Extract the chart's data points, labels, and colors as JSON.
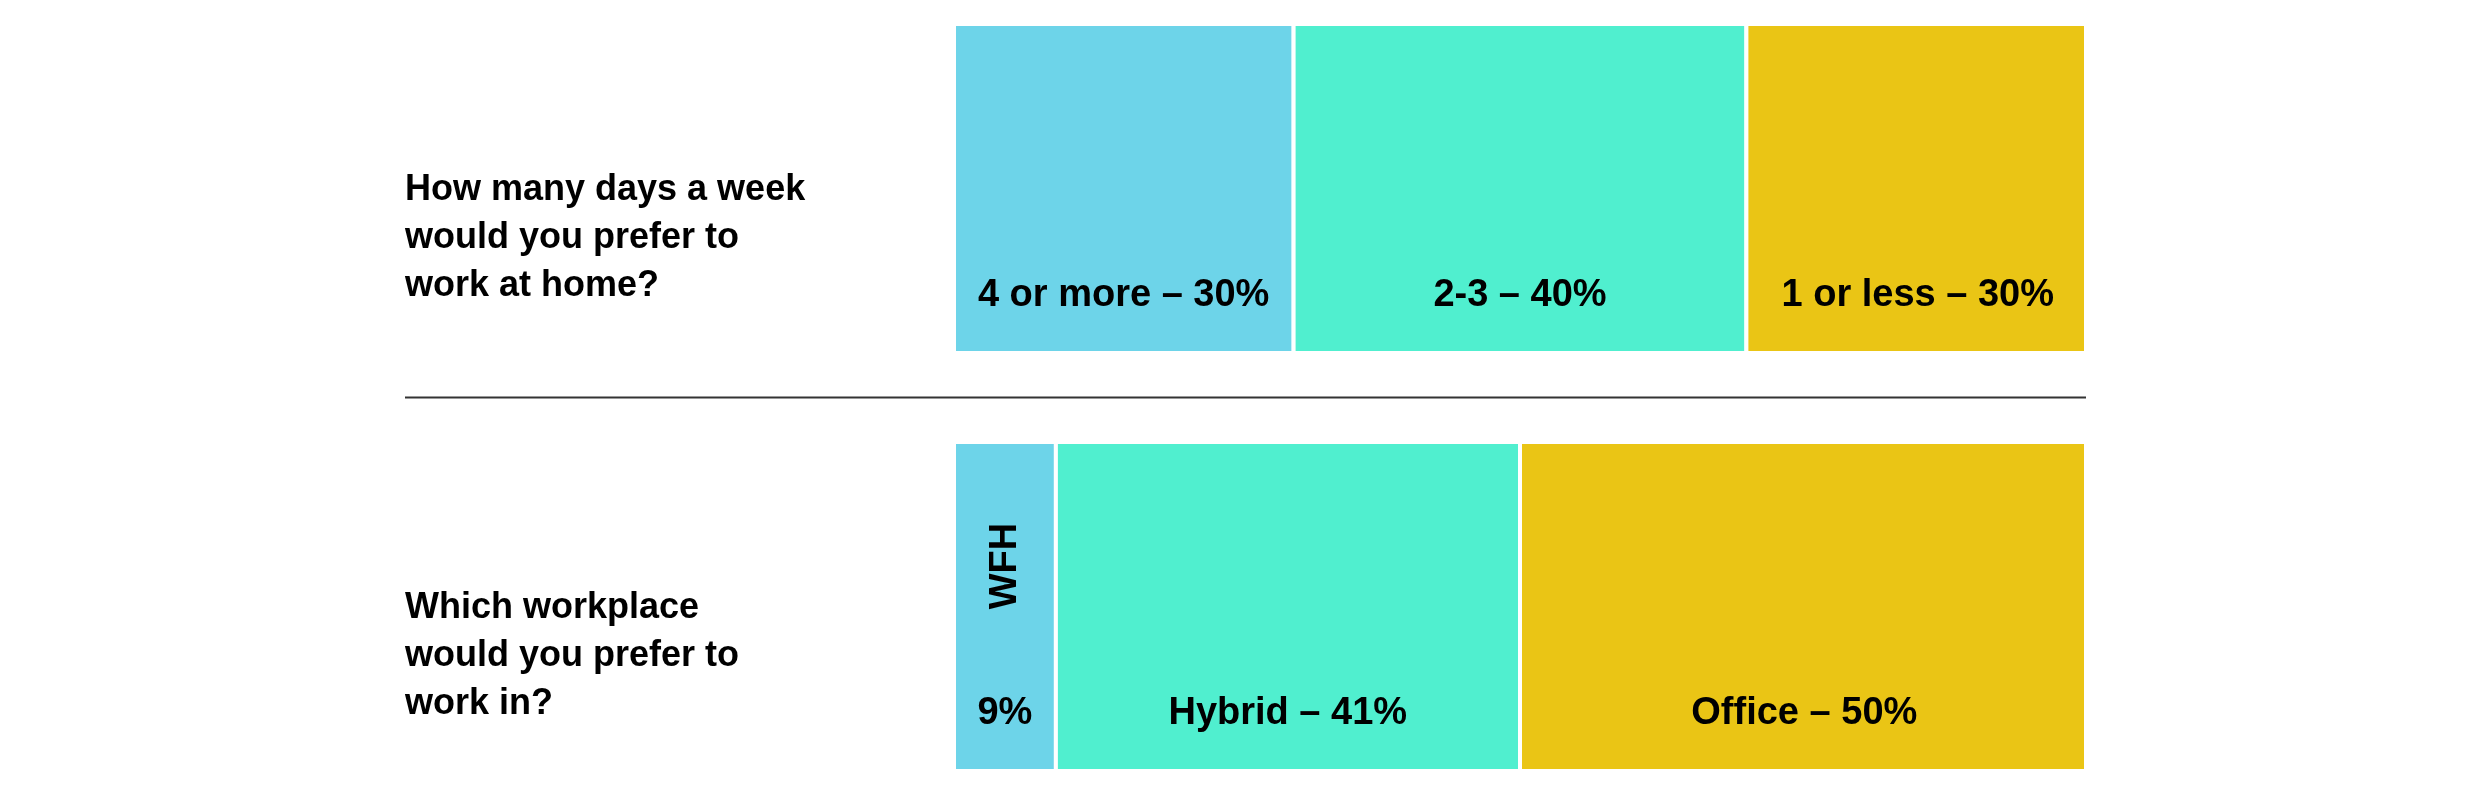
{
  "chart_data": [
    {
      "type": "bar",
      "orientation": "horizontal",
      "stacked": true,
      "tick_labels": false,
      "title": "How many days a week would you prefer to work at home?",
      "categories": [
        null
      ],
      "series": [
        {
          "name": "4 or more –",
          "color": "#6dd4e9",
          "values": [
            30
          ],
          "value_labels": [
            "30%"
          ]
        },
        {
          "name": "2-3 –",
          "color": "#50efcf",
          "values": [
            40
          ],
          "value_labels": [
            "40%"
          ]
        },
        {
          "name": "1 or less –",
          "color": "#eac515",
          "values": [
            30
          ],
          "value_labels": [
            "30%"
          ]
        }
      ]
    },
    {
      "type": "bar",
      "orientation": "horizontal",
      "stacked": true,
      "tick_labels": false,
      "title": "Which workplace would you prefer to work in?",
      "categories": [
        null
      ],
      "series": [
        {
          "name": "WFH",
          "color": "#6dd4e9",
          "values": [
            9
          ],
          "value_labels": [
            "9%"
          ]
        },
        {
          "name": "Hybrid –",
          "color": "#50efcf",
          "values": [
            41
          ],
          "value_labels": [
            "41%"
          ]
        },
        {
          "name": "Office –",
          "color": "#eac515",
          "values": [
            50
          ],
          "value_labels": [
            "50%"
          ]
        }
      ]
    }
  ]
}
